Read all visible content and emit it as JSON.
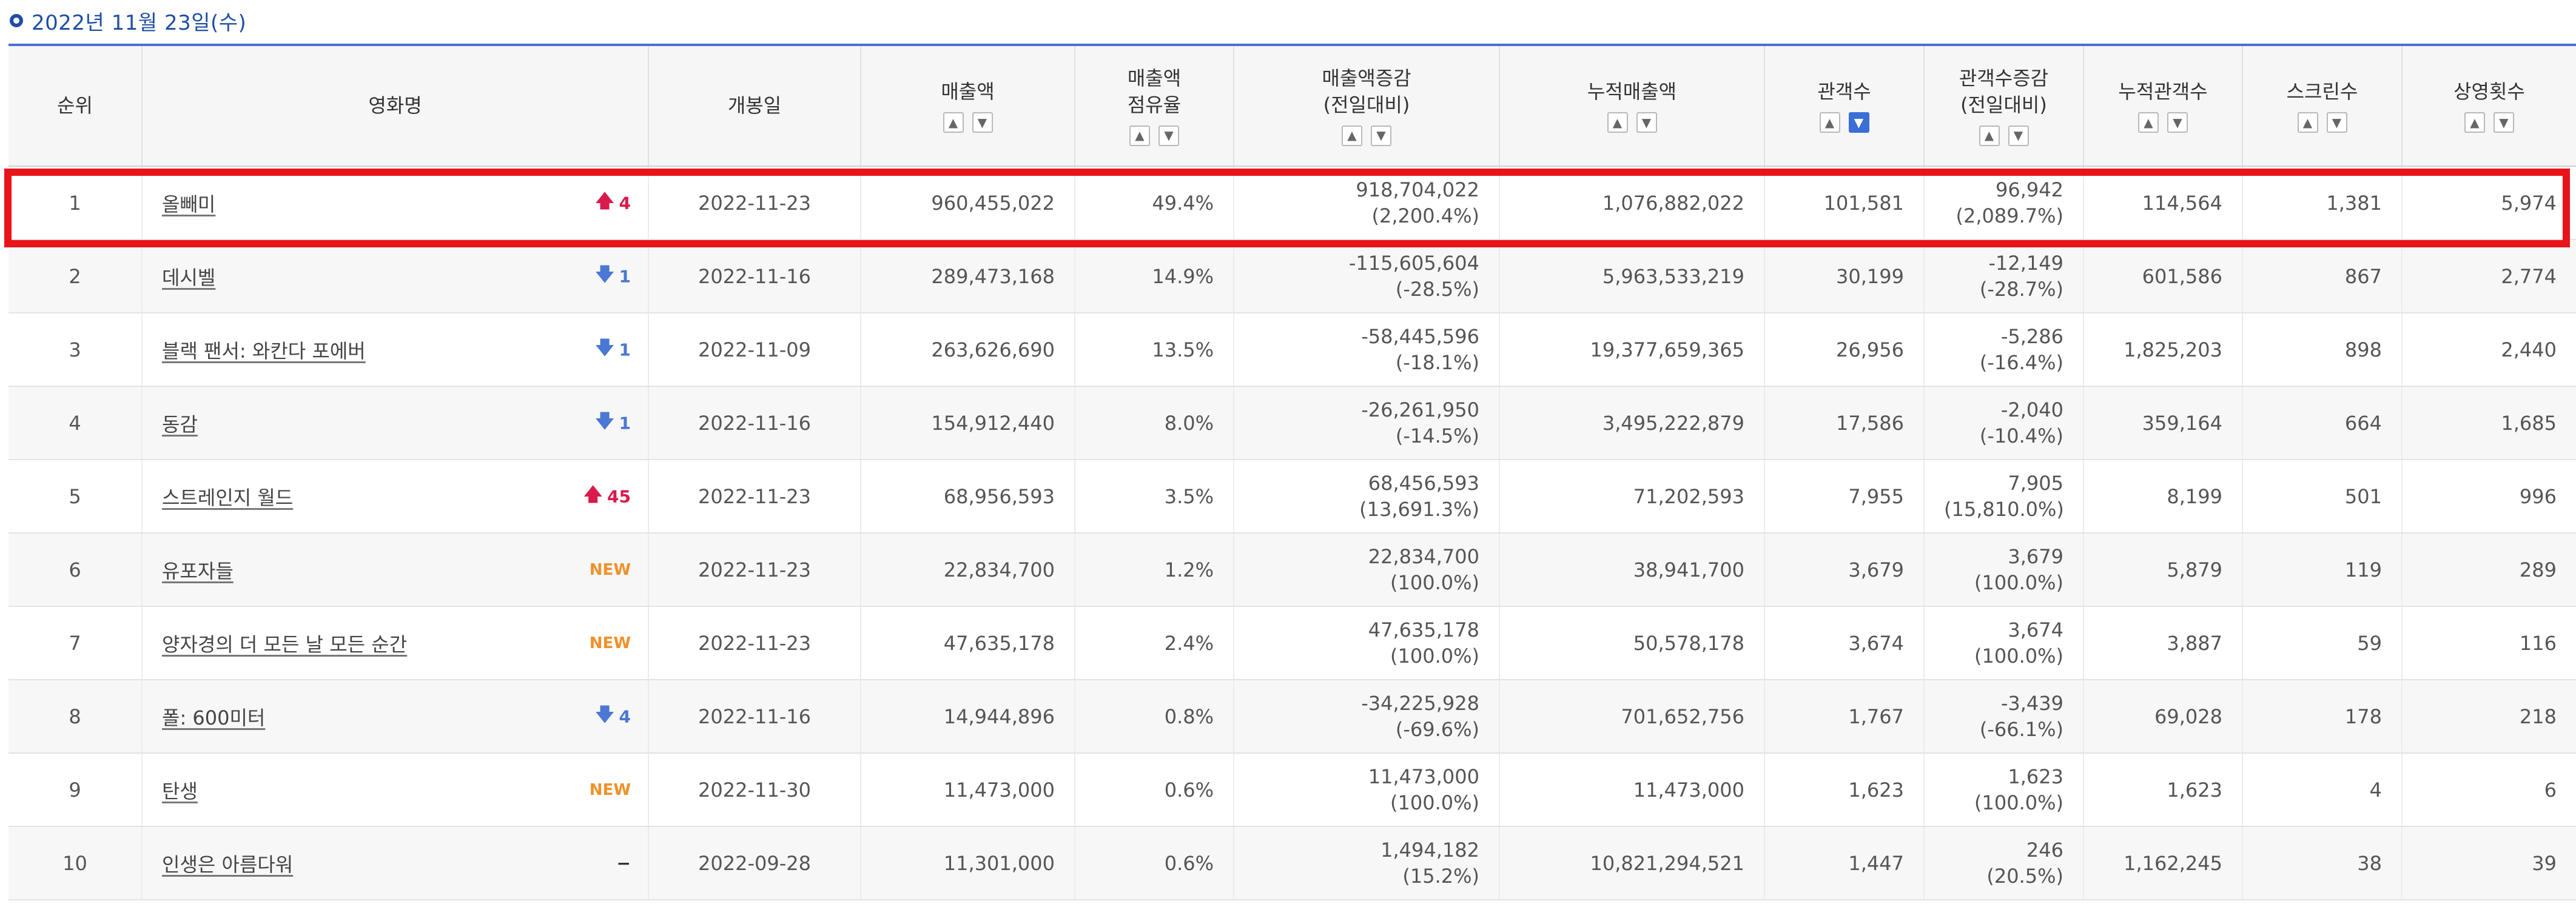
{
  "date_label": "2022년 11월 23일(수)",
  "headers": {
    "rank": "순위",
    "movie": "영화명",
    "open_date": "개봉일",
    "sales": "매출액",
    "sales_share_1": "매출액",
    "sales_share_2": "점유율",
    "sales_change_1": "매출액증감",
    "sales_change_2": "(전일대비)",
    "cum_sales": "누적매출액",
    "audience": "관객수",
    "audience_change_1": "관객수증감",
    "audience_change_2": "(전일대비)",
    "cum_audience": "누적관객수",
    "screens": "스크린수",
    "shows": "상영횟수",
    "sort_up": "▲",
    "sort_down": "▼"
  },
  "colors": {
    "highlight": "#e8141a",
    "accent": "#1f4ea3",
    "change_up": "#d81b4c",
    "change_down": "#4a78d4",
    "change_new": "#f0912a"
  },
  "rows": [
    {
      "rank": "1",
      "movie": "올빼미",
      "change_icon": "arrow-up-icon",
      "change_arrow": "🡅",
      "change_text": "4",
      "open_date": "2022-11-23",
      "sales": "960,455,022",
      "share": "49.4%",
      "sales_change": "918,704,022",
      "sales_change_pct": "(2,200.4%)",
      "cum_sales": "1,076,882,022",
      "audience": "101,581",
      "audience_change": "96,942",
      "audience_change_pct": "(2,089.7%)",
      "cum_audience": "114,564",
      "screens": "1,381",
      "shows": "5,974"
    },
    {
      "rank": "2",
      "movie": "데시벨",
      "change_icon": "arrow-down-icon",
      "change_arrow": "🡇",
      "change_text": "1",
      "open_date": "2022-11-16",
      "sales": "289,473,168",
      "share": "14.9%",
      "sales_change": "-115,605,604",
      "sales_change_pct": "(-28.5%)",
      "cum_sales": "5,963,533,219",
      "audience": "30,199",
      "audience_change": "-12,149",
      "audience_change_pct": "(-28.7%)",
      "cum_audience": "601,586",
      "screens": "867",
      "shows": "2,774"
    },
    {
      "rank": "3",
      "movie": "블랙 팬서: 와칸다 포에버",
      "change_icon": "arrow-down-icon",
      "change_arrow": "🡇",
      "change_text": "1",
      "open_date": "2022-11-09",
      "sales": "263,626,690",
      "share": "13.5%",
      "sales_change": "-58,445,596",
      "sales_change_pct": "(-18.1%)",
      "cum_sales": "19,377,659,365",
      "audience": "26,956",
      "audience_change": "-5,286",
      "audience_change_pct": "(-16.4%)",
      "cum_audience": "1,825,203",
      "screens": "898",
      "shows": "2,440"
    },
    {
      "rank": "4",
      "movie": "동감",
      "change_icon": "arrow-down-icon",
      "change_arrow": "🡇",
      "change_text": "1",
      "open_date": "2022-11-16",
      "sales": "154,912,440",
      "share": "8.0%",
      "sales_change": "-26,261,950",
      "sales_change_pct": "(-14.5%)",
      "cum_sales": "3,495,222,879",
      "audience": "17,586",
      "audience_change": "-2,040",
      "audience_change_pct": "(-10.4%)",
      "cum_audience": "359,164",
      "screens": "664",
      "shows": "1,685"
    },
    {
      "rank": "5",
      "movie": "스트레인지 월드",
      "change_icon": "arrow-up-icon",
      "change_arrow": "🡅",
      "change_text": "45",
      "open_date": "2022-11-23",
      "sales": "68,956,593",
      "share": "3.5%",
      "sales_change": "68,456,593",
      "sales_change_pct": "(13,691.3%)",
      "cum_sales": "71,202,593",
      "audience": "7,955",
      "audience_change": "7,905",
      "audience_change_pct": "(15,810.0%)",
      "cum_audience": "8,199",
      "screens": "501",
      "shows": "996"
    },
    {
      "rank": "6",
      "movie": "유포자들",
      "change_icon": "new-badge-icon",
      "change_arrow": "",
      "change_text": "NEW",
      "open_date": "2022-11-23",
      "sales": "22,834,700",
      "share": "1.2%",
      "sales_change": "22,834,700",
      "sales_change_pct": "(100.0%)",
      "cum_sales": "38,941,700",
      "audience": "3,679",
      "audience_change": "3,679",
      "audience_change_pct": "(100.0%)",
      "cum_audience": "5,879",
      "screens": "119",
      "shows": "289"
    },
    {
      "rank": "7",
      "movie": "양자경의 더 모든 날 모든 순간",
      "change_icon": "new-badge-icon",
      "change_arrow": "",
      "change_text": "NEW",
      "open_date": "2022-11-23",
      "sales": "47,635,178",
      "share": "2.4%",
      "sales_change": "47,635,178",
      "sales_change_pct": "(100.0%)",
      "cum_sales": "50,578,178",
      "audience": "3,674",
      "audience_change": "3,674",
      "audience_change_pct": "(100.0%)",
      "cum_audience": "3,887",
      "screens": "59",
      "shows": "116"
    },
    {
      "rank": "8",
      "movie": "폴: 600미터",
      "change_icon": "arrow-down-icon",
      "change_arrow": "🡇",
      "change_text": "4",
      "open_date": "2022-11-16",
      "sales": "14,944,896",
      "share": "0.8%",
      "sales_change": "-34,225,928",
      "sales_change_pct": "(-69.6%)",
      "cum_sales": "701,652,756",
      "audience": "1,767",
      "audience_change": "-3,439",
      "audience_change_pct": "(-66.1%)",
      "cum_audience": "69,028",
      "screens": "178",
      "shows": "218"
    },
    {
      "rank": "9",
      "movie": "탄생",
      "change_icon": "new-badge-icon",
      "change_arrow": "",
      "change_text": "NEW",
      "open_date": "2022-11-30",
      "sales": "11,473,000",
      "share": "0.6%",
      "sales_change": "11,473,000",
      "sales_change_pct": "(100.0%)",
      "cum_sales": "11,473,000",
      "audience": "1,623",
      "audience_change": "1,623",
      "audience_change_pct": "(100.0%)",
      "cum_audience": "1,623",
      "screens": "4",
      "shows": "6"
    },
    {
      "rank": "10",
      "movie": "인생은 아름다워",
      "change_icon": "no-change-icon",
      "change_arrow": "",
      "change_text": "−",
      "open_date": "2022-09-28",
      "sales": "11,301,000",
      "share": "0.6%",
      "sales_change": "1,494,182",
      "sales_change_pct": "(15.2%)",
      "cum_sales": "10,821,294,521",
      "audience": "1,447",
      "audience_change": "246",
      "audience_change_pct": "(20.5%)",
      "cum_audience": "1,162,245",
      "screens": "38",
      "shows": "39"
    }
  ]
}
